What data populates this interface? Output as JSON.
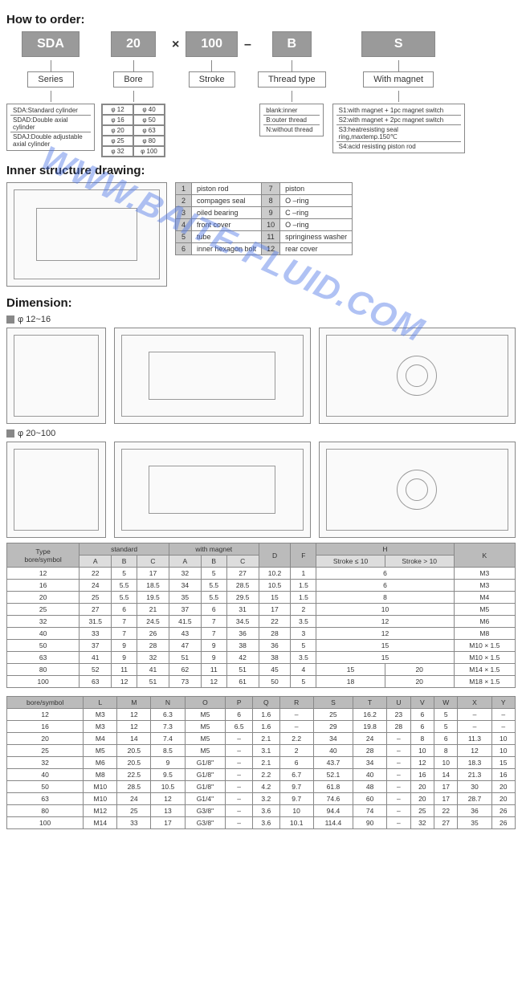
{
  "watermark": "WWW.BAITE-FLUID.COM",
  "titles": {
    "order": "How to order:",
    "inner": "Inner structure drawing:",
    "dimension": "Dimension:"
  },
  "order": {
    "codes": {
      "series": "SDA",
      "bore": "20",
      "stroke": "100",
      "thread": "B",
      "magnet": "S"
    },
    "labels": {
      "series": "Series",
      "bore": "Bore",
      "stroke": "Stroke",
      "thread": "Thread type",
      "magnet": "With magnet"
    },
    "ops": {
      "times": "×",
      "dash": "–"
    },
    "series_opts": [
      "SDA:Standard cylinder",
      "SDAD:Double axial cylinder",
      "SDAJ:Double adjustable axial cylinder"
    ],
    "bore_opts": [
      [
        "φ 12",
        "φ 40"
      ],
      [
        "φ 16",
        "φ 50"
      ],
      [
        "φ 20",
        "φ 63"
      ],
      [
        "φ 25",
        "φ 80"
      ],
      [
        "φ 32",
        "φ 100"
      ]
    ],
    "thread_opts": [
      "blank:inner",
      "B:outer thread",
      "N:without thread"
    ],
    "magnet_opts": [
      "S1:with magnet + 1pc magnet switch",
      "S2:with magnet + 2pc magnet switch",
      "S3:heatresisting seal ring,maxtemp.150℃",
      "S4:acid resisting piston rod"
    ]
  },
  "parts": [
    [
      "1",
      "piston rod",
      "7",
      "piston"
    ],
    [
      "2",
      "compages seal",
      "8",
      "O –ring"
    ],
    [
      "3",
      "oiled bearing",
      "9",
      "C –ring"
    ],
    [
      "4",
      "front cover",
      "10",
      "O –ring"
    ],
    [
      "5",
      "tube",
      "11",
      "springiness washer"
    ],
    [
      "6",
      "inner hexagon bolt",
      "12",
      "rear cover"
    ]
  ],
  "dim_labels": {
    "a": "φ 12~16",
    "b": "φ 20~100"
  },
  "table1": {
    "headers": {
      "type": "Type",
      "standard": "standard",
      "magnet": "with magnet",
      "d": "D",
      "f": "F",
      "h": "H",
      "hs1": "Stroke ≤ 10",
      "hs2": "Stroke > 10",
      "k": "K",
      "bore": "bore/symbol",
      "a": "A",
      "b": "B",
      "c": "C"
    },
    "rows": [
      {
        "bore": "12",
        "sa": "22",
        "sb": "5",
        "sc": "17",
        "ma": "32",
        "mb": "5",
        "mc": "27",
        "d": "10.2",
        "f": "1",
        "h1": "6",
        "h2": "",
        "k": "M3",
        "hsplit": false
      },
      {
        "bore": "16",
        "sa": "24",
        "sb": "5.5",
        "sc": "18.5",
        "ma": "34",
        "mb": "5.5",
        "mc": "28.5",
        "d": "10.5",
        "f": "1.5",
        "h1": "6",
        "h2": "",
        "k": "M3",
        "hsplit": false
      },
      {
        "bore": "20",
        "sa": "25",
        "sb": "5.5",
        "sc": "19.5",
        "ma": "35",
        "mb": "5.5",
        "mc": "29.5",
        "d": "15",
        "f": "1.5",
        "h1": "8",
        "h2": "",
        "k": "M4",
        "hsplit": false
      },
      {
        "bore": "25",
        "sa": "27",
        "sb": "6",
        "sc": "21",
        "ma": "37",
        "mb": "6",
        "mc": "31",
        "d": "17",
        "f": "2",
        "h1": "10",
        "h2": "",
        "k": "M5",
        "hsplit": false
      },
      {
        "bore": "32",
        "sa": "31.5",
        "sb": "7",
        "sc": "24.5",
        "ma": "41.5",
        "mb": "7",
        "mc": "34.5",
        "d": "22",
        "f": "3.5",
        "h1": "12",
        "h2": "",
        "k": "M6",
        "hsplit": false
      },
      {
        "bore": "40",
        "sa": "33",
        "sb": "7",
        "sc": "26",
        "ma": "43",
        "mb": "7",
        "mc": "36",
        "d": "28",
        "f": "3",
        "h1": "12",
        "h2": "",
        "k": "M8",
        "hsplit": false
      },
      {
        "bore": "50",
        "sa": "37",
        "sb": "9",
        "sc": "28",
        "ma": "47",
        "mb": "9",
        "mc": "38",
        "d": "36",
        "f": "5",
        "h1": "15",
        "h2": "",
        "k": "M10 × 1.5",
        "hsplit": false
      },
      {
        "bore": "63",
        "sa": "41",
        "sb": "9",
        "sc": "32",
        "ma": "51",
        "mb": "9",
        "mc": "42",
        "d": "38",
        "f": "3.5",
        "h1": "15",
        "h2": "",
        "k": "M10 × 1.5",
        "hsplit": false
      },
      {
        "bore": "80",
        "sa": "52",
        "sb": "11",
        "sc": "41",
        "ma": "62",
        "mb": "11",
        "mc": "51",
        "d": "45",
        "f": "4",
        "h1": "15",
        "h2": "20",
        "k": "M14 × 1.5",
        "hsplit": true
      },
      {
        "bore": "100",
        "sa": "63",
        "sb": "12",
        "sc": "51",
        "ma": "73",
        "mb": "12",
        "mc": "61",
        "d": "50",
        "f": "5",
        "h1": "18",
        "h2": "20",
        "k": "M18 × 1.5",
        "hsplit": true
      }
    ]
  },
  "table2": {
    "headers": [
      "bore/symbol",
      "L",
      "M",
      "N",
      "O",
      "P",
      "Q",
      "R",
      "S",
      "T",
      "U",
      "V",
      "W",
      "X",
      "Y"
    ],
    "rows": [
      [
        "12",
        "M3",
        "12",
        "6.3",
        "M5",
        "6",
        "1.6",
        "–",
        "25",
        "16.2",
        "23",
        "6",
        "5",
        "–",
        "–"
      ],
      [
        "16",
        "M3",
        "12",
        "7.3",
        "M5",
        "6.5",
        "1.6",
        "–",
        "29",
        "19.8",
        "28",
        "6",
        "5",
        "–",
        "–"
      ],
      [
        "20",
        "M4",
        "14",
        "7.4",
        "M5",
        "–",
        "2.1",
        "2.2",
        "34",
        "24",
        "–",
        "8",
        "6",
        "11.3",
        "10"
      ],
      [
        "25",
        "M5",
        "20.5",
        "8.5",
        "M5",
        "–",
        "3.1",
        "2",
        "40",
        "28",
        "–",
        "10",
        "8",
        "12",
        "10"
      ],
      [
        "32",
        "M6",
        "20.5",
        "9",
        "G1/8\"",
        "–",
        "2.1",
        "6",
        "43.7",
        "34",
        "–",
        "12",
        "10",
        "18.3",
        "15"
      ],
      [
        "40",
        "M8",
        "22.5",
        "9.5",
        "G1/8\"",
        "–",
        "2.2",
        "6.7",
        "52.1",
        "40",
        "–",
        "16",
        "14",
        "21.3",
        "16"
      ],
      [
        "50",
        "M10",
        "28.5",
        "10.5",
        "G1/8\"",
        "–",
        "4.2",
        "9.7",
        "61.8",
        "48",
        "–",
        "20",
        "17",
        "30",
        "20"
      ],
      [
        "63",
        "M10",
        "24",
        "12",
        "G1/4\"",
        "–",
        "3.2",
        "9.7",
        "74.6",
        "60",
        "–",
        "20",
        "17",
        "28.7",
        "20"
      ],
      [
        "80",
        "M12",
        "25",
        "13",
        "G3/8\"",
        "–",
        "3.6",
        "10",
        "94.4",
        "74",
        "–",
        "25",
        "22",
        "36",
        "26"
      ],
      [
        "100",
        "M14",
        "33",
        "17",
        "G3/8\"",
        "–",
        "3.6",
        "10.1",
        "114.4",
        "90",
        "–",
        "32",
        "27",
        "35",
        "26"
      ]
    ]
  }
}
